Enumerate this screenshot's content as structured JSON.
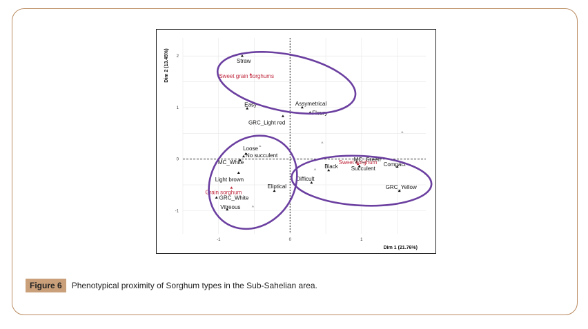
{
  "caption": {
    "label": "Figure 6",
    "text": "Phenotypical proximity of Sorghum types in the Sub-Sahelian area."
  },
  "colors": {
    "ellipse": "#6b3fa0",
    "variable_point": "#111111",
    "group_label": "#c0283d",
    "gridline": "#e6e6e6",
    "zero_line": "#333333"
  },
  "chart_data": {
    "type": "scatter",
    "xlabel": "Dim 1 (21.76%)",
    "ylabel": "Dim 2 (13.45%)",
    "xlim": [
      -1.5,
      1.9
    ],
    "ylim": [
      -1.45,
      2.35
    ],
    "x_ticks": [
      -1,
      0,
      1
    ],
    "y_ticks": [
      -1,
      0,
      1,
      2
    ],
    "grid": true,
    "points": [
      {
        "label": "Straw",
        "x": -0.67,
        "y": 2.0,
        "kind": "variable"
      },
      {
        "label": "Sweet grain sorghums",
        "x": -0.55,
        "y": 1.64,
        "kind": "group"
      },
      {
        "label": "Easy",
        "x": -0.6,
        "y": 0.98,
        "kind": "variable"
      },
      {
        "label": "Assymetrical",
        "x": 0.17,
        "y": 1.0,
        "kind": "variable"
      },
      {
        "label": "Floury",
        "x": 0.28,
        "y": 0.9,
        "kind": "variable"
      },
      {
        "label": "GRC_Light red",
        "x": -0.1,
        "y": 0.83,
        "kind": "variable"
      },
      {
        "label": "Loose",
        "x": -0.62,
        "y": 0.1,
        "kind": "variable"
      },
      {
        "label": "No succulent",
        "x": -0.65,
        "y": 0.05,
        "kind": "variable"
      },
      {
        "label": "MC_White",
        "x": -0.7,
        "y": -0.02,
        "kind": "variable"
      },
      {
        "label": "Light brown",
        "x": -0.72,
        "y": -0.27,
        "kind": "variable"
      },
      {
        "label": "Grain sorghum",
        "x": -0.82,
        "y": -0.56,
        "kind": "group"
      },
      {
        "label": "GRC_White",
        "x": -1.03,
        "y": -0.75,
        "kind": "variable"
      },
      {
        "label": "Vitreous",
        "x": -0.88,
        "y": -0.98,
        "kind": "variable"
      },
      {
        "label": "Eliptical",
        "x": -0.22,
        "y": -0.62,
        "kind": "variable"
      },
      {
        "label": "Difficult",
        "x": 0.3,
        "y": -0.46,
        "kind": "variable"
      },
      {
        "label": "Black",
        "x": 0.54,
        "y": -0.22,
        "kind": "variable"
      },
      {
        "label": "MC_Green",
        "x": 0.93,
        "y": -0.06,
        "kind": "variable"
      },
      {
        "label": "Sweet sorghum",
        "x": 0.95,
        "y": -0.1,
        "kind": "group"
      },
      {
        "label": "Succulent",
        "x": 0.97,
        "y": -0.14,
        "kind": "variable"
      },
      {
        "label": "Compact",
        "x": 1.5,
        "y": -0.15,
        "kind": "variable"
      },
      {
        "label": "GRC_Yellow",
        "x": 1.53,
        "y": -0.62,
        "kind": "variable"
      }
    ],
    "extra_points": [
      {
        "x": -0.42,
        "y": 0.25
      },
      {
        "x": 0.45,
        "y": 0.32
      },
      {
        "x": 1.57,
        "y": 0.52
      },
      {
        "x": 0.35,
        "y": -0.2
      },
      {
        "x": -0.52,
        "y": -0.92
      }
    ],
    "ellipses": [
      {
        "cx": -0.05,
        "cy": 1.48,
        "rx": 0.98,
        "ry": 0.55,
        "rotation_deg": 11
      },
      {
        "cx": -0.52,
        "cy": -0.45,
        "rx": 0.58,
        "ry": 0.95,
        "rotation_deg": 35
      },
      {
        "cx": 1.0,
        "cy": -0.42,
        "rx": 0.98,
        "ry": 0.48,
        "rotation_deg": 3
      }
    ]
  }
}
